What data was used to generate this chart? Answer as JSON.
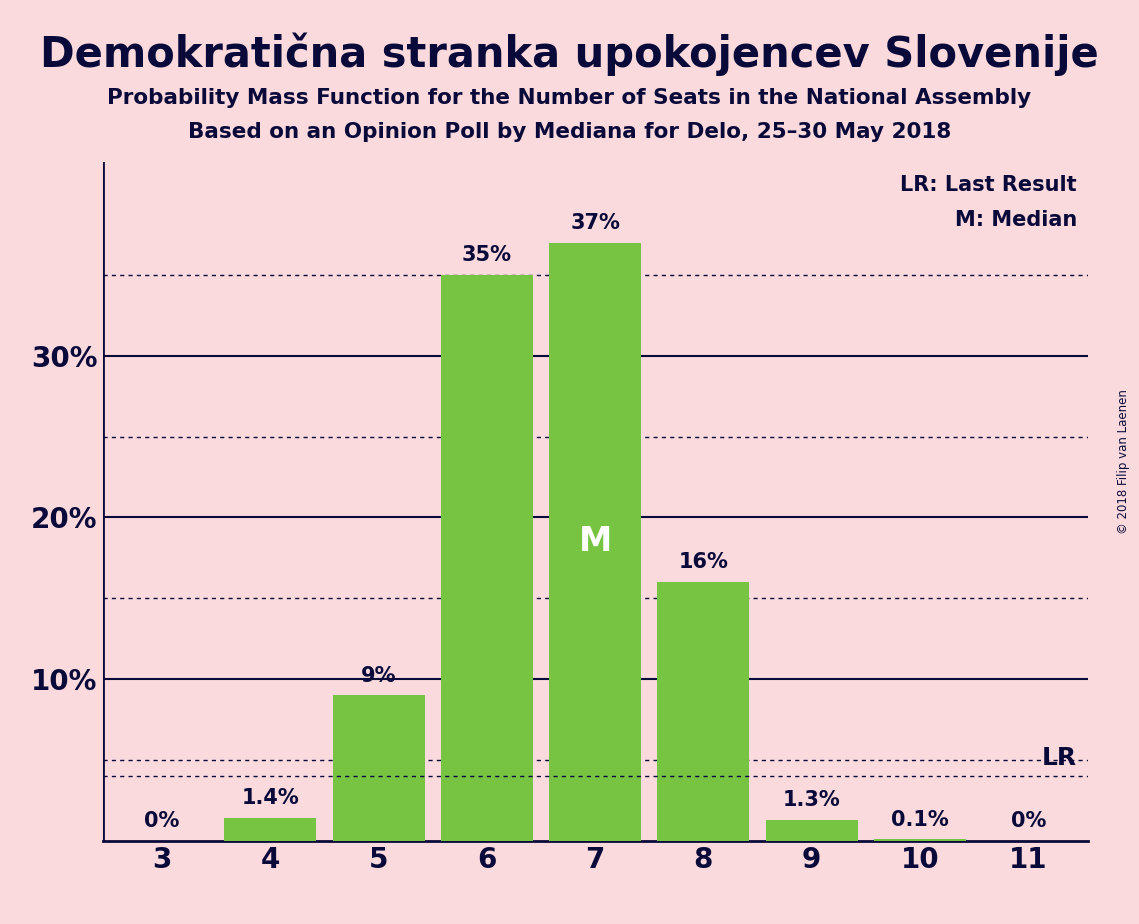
{
  "title": "Demokratična stranka upokojencev Slovenije",
  "subtitle1": "Probability Mass Function for the Number of Seats in the National Assembly",
  "subtitle2": "Based on an Opinion Poll by Mediana for Delo, 25–30 May 2018",
  "copyright": "© 2018 Filip van Laenen",
  "categories": [
    3,
    4,
    5,
    6,
    7,
    8,
    9,
    10,
    11
  ],
  "values": [
    0.0,
    1.4,
    9.0,
    35.0,
    37.0,
    16.0,
    1.3,
    0.1,
    0.0
  ],
  "labels": [
    "0%",
    "1.4%",
    "9%",
    "35%",
    "37%",
    "16%",
    "1.3%",
    "0.1%",
    "0%"
  ],
  "bar_color": "#76c442",
  "background_color": "#fadadd",
  "text_color": "#0a0a3a",
  "median_seat": 7,
  "lr_value": 4.0,
  "lr_label": "LR",
  "lr_legend": "LR: Last Result",
  "median_legend": "M: Median",
  "solid_gridlines": [
    10,
    20,
    30
  ],
  "dotted_gridlines": [
    5,
    15,
    25,
    35
  ],
  "ylim": [
    0,
    42
  ]
}
